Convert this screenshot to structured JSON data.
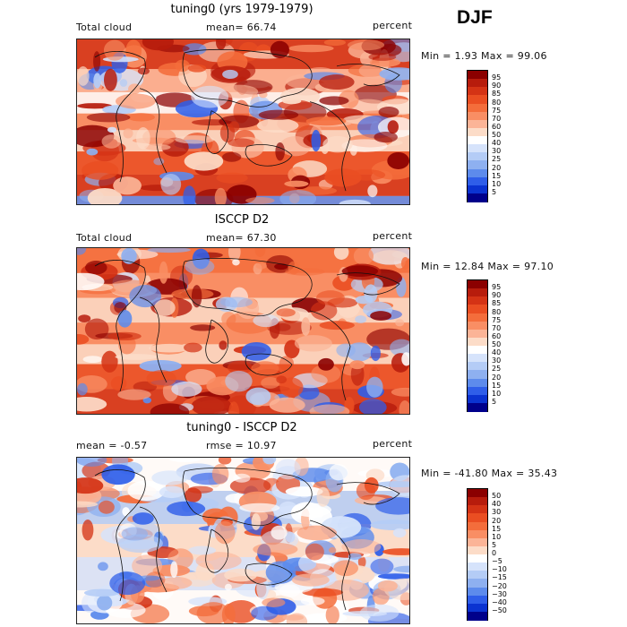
{
  "season": "DJF",
  "panels": [
    {
      "title": "tuning0 (yrs 1979-1979)",
      "left_label": "Total cloud",
      "center_label": "mean=  66.74",
      "right_label": "percent",
      "minmax": "Min =    1.93 Max =  99.06",
      "colorbar": {
        "labels": [
          "95",
          "90",
          "85",
          "80",
          "75",
          "70",
          "60",
          "50",
          "40",
          "30",
          "25",
          "20",
          "15",
          "10",
          "5"
        ],
        "colors": [
          "#8b0000",
          "#b71c0c",
          "#d43315",
          "#ea4e22",
          "#f46d3b",
          "#f98e64",
          "#fbb497",
          "#fcdcc8",
          "#ffffff",
          "#d6e3fb",
          "#b4ccf6",
          "#8eb0f0",
          "#5d8bec",
          "#2f5ee9",
          "#0b33d1",
          "#00008b"
        ]
      }
    },
    {
      "title": "ISCCP D2",
      "left_label": "Total cloud",
      "center_label": "mean=  67.30",
      "right_label": "percent",
      "minmax": "Min =  12.84 Max =  97.10",
      "colorbar": {
        "labels": [
          "95",
          "90",
          "85",
          "80",
          "75",
          "70",
          "60",
          "50",
          "40",
          "30",
          "25",
          "20",
          "15",
          "10",
          "5"
        ],
        "colors": [
          "#8b0000",
          "#b71c0c",
          "#d43315",
          "#ea4e22",
          "#f46d3b",
          "#f98e64",
          "#fbb497",
          "#fcdcc8",
          "#ffffff",
          "#d6e3fb",
          "#b4ccf6",
          "#8eb0f0",
          "#5d8bec",
          "#2f5ee9",
          "#0b33d1",
          "#00008b"
        ]
      }
    },
    {
      "title": "tuning0 - ISCCP D2",
      "left_label": "mean =   -0.57",
      "center_label": "rmse =  10.97",
      "right_label": "percent",
      "minmax": "Min = -41.80 Max =  35.43",
      "colorbar": {
        "labels": [
          "50",
          "40",
          "30",
          "20",
          "15",
          "10",
          "5",
          "0",
          "−5",
          "−10",
          "−15",
          "−20",
          "−30",
          "−40",
          "−50"
        ],
        "colors": [
          "#8b0000",
          "#b71c0c",
          "#d43315",
          "#ea4e22",
          "#f46d3b",
          "#f98e64",
          "#fbb497",
          "#fcdcc8",
          "#ffffff",
          "#d6e3fb",
          "#b4ccf6",
          "#8eb0f0",
          "#5d8bec",
          "#2f5ee9",
          "#0b33d1",
          "#00008b"
        ]
      }
    }
  ]
}
